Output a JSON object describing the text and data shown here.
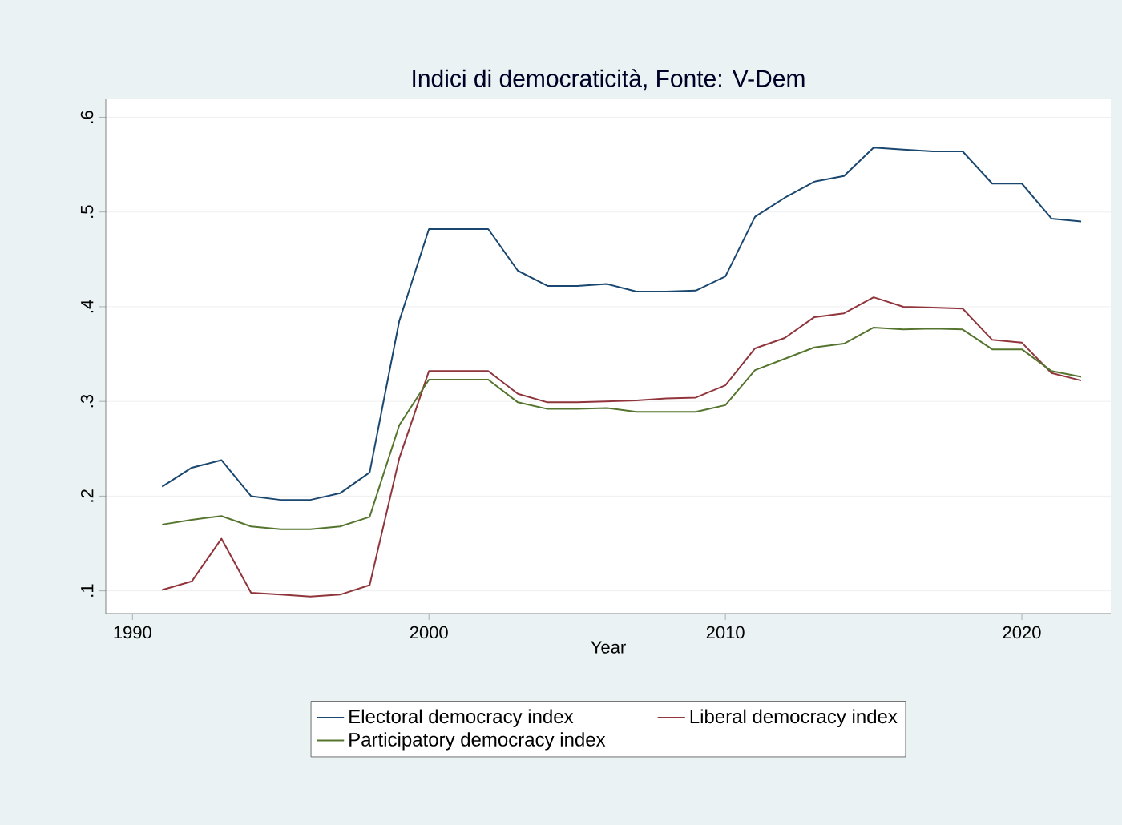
{
  "chart_data": {
    "type": "line",
    "title": "Indici di democraticità, Fonte: V-Dem",
    "xlabel": "Year",
    "x": [
      1991,
      1992,
      1993,
      1994,
      1995,
      1996,
      1997,
      1998,
      1999,
      2000,
      2001,
      2002,
      2003,
      2004,
      2005,
      2006,
      2007,
      2008,
      2009,
      2010,
      2011,
      2012,
      2013,
      2014,
      2015,
      2016,
      2017,
      2018,
      2019,
      2020,
      2021,
      2022
    ],
    "series": [
      {
        "name": "Electoral democracy index",
        "color": "#1a476f",
        "values": [
          0.21,
          0.23,
          0.238,
          0.2,
          0.196,
          0.196,
          0.203,
          0.225,
          0.385,
          0.482,
          0.482,
          0.482,
          0.438,
          0.422,
          0.422,
          0.424,
          0.416,
          0.416,
          0.417,
          0.432,
          0.495,
          0.515,
          0.532,
          0.538,
          0.568,
          0.566,
          0.564,
          0.564,
          0.53,
          0.53,
          0.493,
          0.49
        ]
      },
      {
        "name": "Liberal democracy index",
        "color": "#90353b",
        "values": [
          0.101,
          0.11,
          0.155,
          0.098,
          0.096,
          0.094,
          0.096,
          0.106,
          0.24,
          0.332,
          0.332,
          0.332,
          0.308,
          0.299,
          0.299,
          0.3,
          0.301,
          0.303,
          0.304,
          0.317,
          0.356,
          0.367,
          0.389,
          0.393,
          0.41,
          0.4,
          0.399,
          0.398,
          0.365,
          0.362,
          0.33,
          0.322
        ]
      },
      {
        "name": "Participatory democracy index",
        "color": "#55752f",
        "values": [
          0.17,
          0.175,
          0.179,
          0.168,
          0.165,
          0.165,
          0.168,
          0.178,
          0.275,
          0.323,
          0.323,
          0.323,
          0.299,
          0.292,
          0.292,
          0.293,
          0.289,
          0.289,
          0.289,
          0.296,
          0.333,
          0.345,
          0.357,
          0.361,
          0.378,
          0.376,
          0.377,
          0.376,
          0.355,
          0.355,
          0.332,
          0.326
        ]
      }
    ],
    "xlim": [
      1989.1,
      2023
    ],
    "xticks": [
      1990,
      2000,
      2010,
      2020
    ],
    "ylim": [
      0.076,
      0.619
    ],
    "yticks": [
      {
        "value": 0.1,
        "label": ".1"
      },
      {
        "value": 0.2,
        "label": ".2"
      },
      {
        "value": 0.3,
        "label": ".3"
      },
      {
        "value": 0.4,
        "label": ".4"
      },
      {
        "value": 0.5,
        "label": ".5"
      },
      {
        "value": 0.6,
        "label": ".6"
      }
    ],
    "grid": "y",
    "legend": "bottom",
    "marker": "none",
    "line_style": "solid"
  }
}
